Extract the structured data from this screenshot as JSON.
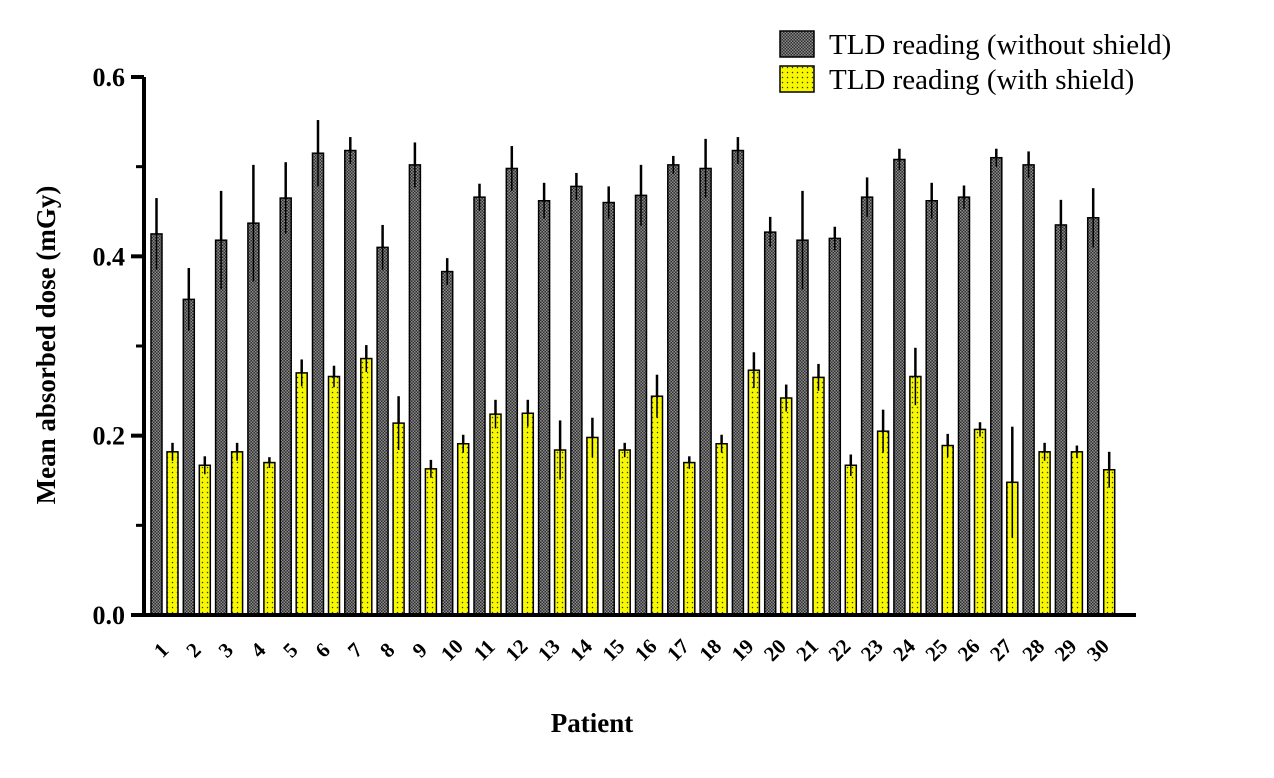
{
  "chart_data": {
    "type": "bar",
    "xlabel": "Patient",
    "ylabel": "Mean absorbed dose (mGy)",
    "ylim": [
      0,
      0.6
    ],
    "yticks": [
      "0.0",
      "0.2",
      "0.4",
      "0.6"
    ],
    "grid": false,
    "legend_position": "top-right",
    "categories": [
      "1",
      "2",
      "3",
      "4",
      "5",
      "6",
      "7",
      "8",
      "9",
      "10",
      "11",
      "12",
      "13",
      "14",
      "15",
      "16",
      "17",
      "18",
      "19",
      "20",
      "21",
      "22",
      "23",
      "24",
      "25",
      "26",
      "27",
      "28",
      "29",
      "30"
    ],
    "series": [
      {
        "name": "TLD reading (without shield)",
        "color": "#3a3a3a",
        "values": [
          0.425,
          0.352,
          0.418,
          0.437,
          0.465,
          0.515,
          0.518,
          0.41,
          0.502,
          0.383,
          0.466,
          0.498,
          0.462,
          0.478,
          0.46,
          0.468,
          0.502,
          0.498,
          0.518,
          0.427,
          0.418,
          0.42,
          0.466,
          0.508,
          0.462,
          0.466,
          0.51,
          0.502,
          0.435,
          0.443
        ],
        "errors": [
          0.04,
          0.035,
          0.055,
          0.065,
          0.04,
          0.037,
          0.015,
          0.025,
          0.025,
          0.015,
          0.015,
          0.025,
          0.02,
          0.015,
          0.018,
          0.034,
          0.01,
          0.033,
          0.015,
          0.017,
          0.055,
          0.013,
          0.022,
          0.012,
          0.02,
          0.013,
          0.01,
          0.015,
          0.028,
          0.033
        ]
      },
      {
        "name": "TLD reading (with shield)",
        "color": "#f5f500",
        "values": [
          0.182,
          0.167,
          0.182,
          0.17,
          0.27,
          0.266,
          0.286,
          0.214,
          0.163,
          0.191,
          0.224,
          0.225,
          0.184,
          0.198,
          0.184,
          0.244,
          0.17,
          0.191,
          0.273,
          0.242,
          0.265,
          0.167,
          0.205,
          0.266,
          0.189,
          0.207,
          0.148,
          0.182,
          0.182,
          0.162
        ],
        "errors": [
          0.01,
          0.01,
          0.01,
          0.006,
          0.015,
          0.012,
          0.015,
          0.03,
          0.01,
          0.01,
          0.016,
          0.015,
          0.033,
          0.022,
          0.008,
          0.024,
          0.007,
          0.01,
          0.02,
          0.015,
          0.015,
          0.012,
          0.024,
          0.032,
          0.013,
          0.008,
          0.062,
          0.01,
          0.007,
          0.02
        ]
      }
    ]
  }
}
